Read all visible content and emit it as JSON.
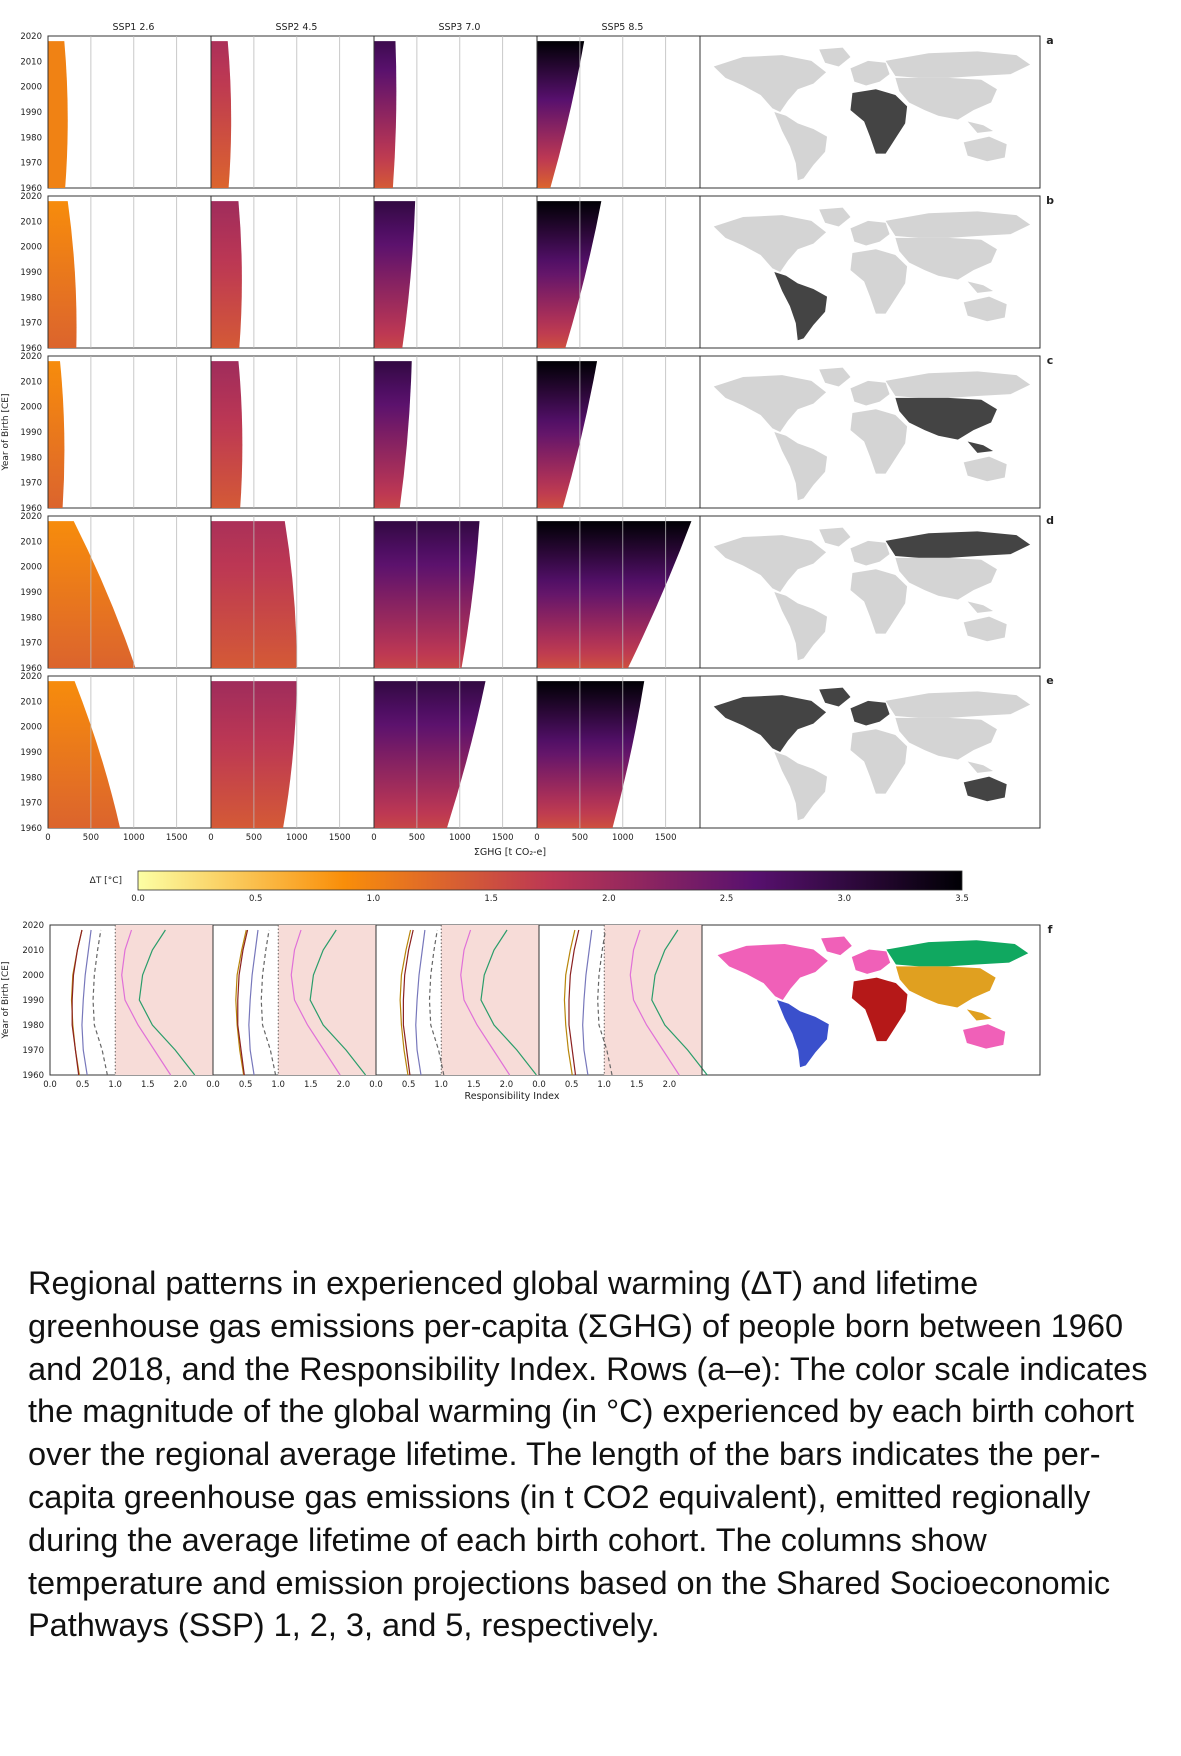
{
  "chart_data": [
    {
      "type": "bar",
      "panels": [
        "a",
        "b",
        "c",
        "d",
        "e"
      ],
      "scenarios": [
        "SSP1 2.6",
        "SSP2 4.5",
        "SSP3 7.0",
        "SSP5 8.5"
      ],
      "y_axis_label": "Year of Birth [CE]",
      "y_ticks": [
        1960,
        1970,
        1980,
        1990,
        2000,
        2010,
        2020
      ],
      "ylim": [
        1960,
        2020
      ],
      "x_axis_label": "ΣGHG [t CO₂-e]",
      "x_tick_labels": [
        "0",
        "500",
        "1000",
        "1500"
      ],
      "x_ticks": [
        0,
        500,
        1000,
        1500
      ],
      "xlim": [
        0,
        1900
      ],
      "bar_cohorts": [
        1960,
        2018
      ],
      "ghg": {
        "a": [
          [
            200,
            190
          ],
          [
            205,
            195
          ],
          [
            220,
            250
          ],
          [
            155,
            550
          ]
        ],
        "b": [
          [
            330,
            230
          ],
          [
            330,
            320
          ],
          [
            330,
            480
          ],
          [
            330,
            750
          ]
        ],
        "c": [
          [
            170,
            140
          ],
          [
            340,
            320
          ],
          [
            300,
            440
          ],
          [
            300,
            700
          ]
        ],
        "d": [
          [
            1020,
            300
          ],
          [
            1000,
            860
          ],
          [
            1020,
            1230
          ],
          [
            1060,
            1800
          ]
        ],
        "e": [
          [
            840,
            310
          ],
          [
            840,
            1000
          ],
          [
            850,
            1300
          ],
          [
            880,
            1250
          ]
        ]
      },
      "warming_C": {
        "a": [
          [
            1.0,
            1.0
          ],
          [
            1.3,
            1.9
          ],
          [
            1.4,
            2.9
          ],
          [
            1.3,
            3.5
          ]
        ],
        "b": [
          [
            1.3,
            0.9
          ],
          [
            1.4,
            2.0
          ],
          [
            1.6,
            3.0
          ],
          [
            1.5,
            3.5
          ]
        ],
        "c": [
          [
            1.3,
            0.9
          ],
          [
            1.4,
            2.0
          ],
          [
            1.6,
            3.0
          ],
          [
            1.5,
            3.5
          ]
        ],
        "d": [
          [
            1.3,
            0.9
          ],
          [
            1.4,
            1.9
          ],
          [
            1.6,
            3.0
          ],
          [
            1.5,
            3.5
          ]
        ],
        "e": [
          [
            1.3,
            0.9
          ],
          [
            1.4,
            2.0
          ],
          [
            1.6,
            3.0
          ],
          [
            1.5,
            3.5
          ]
        ]
      },
      "highlight_regions": {
        "a": "Africa",
        "b": "Latin America",
        "c": "Asia",
        "d": "Russia / North Asia",
        "e": "North America, Europe and Oceania"
      }
    },
    {
      "type": "heatmap",
      "colorbar_label": "ΔT [°C]",
      "range": [
        0,
        3.5
      ],
      "tick_labels": [
        "0.0",
        "0.5",
        "1.0",
        "1.5",
        "2.0",
        "2.5",
        "3.0",
        "3.5"
      ],
      "ticks": [
        0.0,
        0.5,
        1.0,
        1.5,
        2.0,
        2.5,
        3.0,
        3.5
      ],
      "colormap_stops": [
        "#fcffa4",
        "#f98e09",
        "#bc3754",
        "#57106e",
        "#000004"
      ]
    },
    {
      "type": "line",
      "panel": "f",
      "y_axis_label": "Year of Birth [CE]",
      "x_axis_label": "Responsibility Index",
      "y_ticks": [
        1960,
        1970,
        1980,
        1990,
        2000,
        2010,
        2020
      ],
      "ylim": [
        1960,
        2020
      ],
      "x_tick_labels": [
        "0.0",
        "0.5",
        "1.0",
        "1.5",
        "2.0"
      ],
      "x_ticks": [
        0.0,
        0.5,
        1.0,
        1.5,
        2.0
      ],
      "xlim": [
        0,
        2.5
      ],
      "reference_line": 1.0,
      "shaded_range": [
        1.0,
        2.5
      ],
      "series": [
        {
          "color": "#b8860b",
          "x": [
            0.48,
            0.42,
            0.38,
            0.36,
            0.38,
            0.45,
            0.52
          ],
          "y": [
            1960,
            1970,
            1980,
            1990,
            2000,
            2010,
            2018
          ]
        },
        {
          "color": "#8b2020",
          "x": [
            0.5,
            0.45,
            0.4,
            0.4,
            0.42,
            0.48,
            0.55
          ],
          "y": [
            1960,
            1970,
            1980,
            1990,
            2000,
            2010,
            2018
          ]
        },
        {
          "color": "#7777bb",
          "x": [
            0.66,
            0.6,
            0.58,
            0.6,
            0.63,
            0.68,
            0.72
          ],
          "y": [
            1960,
            1970,
            1980,
            1990,
            2000,
            2010,
            2018
          ]
        },
        {
          "color": "#666666",
          "dashed": true,
          "x": [
            1.0,
            0.92,
            0.8,
            0.78,
            0.8,
            0.85,
            0.9
          ],
          "y": [
            1960,
            1970,
            1980,
            1990,
            2000,
            2010,
            2018
          ]
        },
        {
          "color": "#e070d8",
          "x": [
            2.0,
            1.75,
            1.5,
            1.3,
            1.25,
            1.3,
            1.4
          ],
          "y": [
            1960,
            1970,
            1980,
            1990,
            2000,
            2010,
            2018
          ]
        },
        {
          "color": "#2a9d6a",
          "x": [
            2.4,
            2.1,
            1.75,
            1.55,
            1.6,
            1.75,
            1.95
          ],
          "y": [
            1960,
            1970,
            1980,
            1990,
            2000,
            2010,
            2018
          ]
        }
      ],
      "map_regions": [
        {
          "name": "North America, Europe and Oceania",
          "color": "#f060b8"
        },
        {
          "name": "Latin America",
          "color": "#3a50cc"
        },
        {
          "name": "Africa",
          "color": "#b51818"
        },
        {
          "name": "Asia",
          "color": "#e0a020"
        },
        {
          "name": "Russia / North Asia",
          "color": "#10a860"
        }
      ]
    }
  ],
  "caption": "Regional patterns in experienced global warming (ΔT) and lifetime greenhouse gas emissions per-capita (ΣGHG) of people born between 1960 and 2018, and the Responsibility Index. Rows (a–e): The color scale indicates the magnitude of the global warming (in °C) experienced by each birth cohort over the regional average lifetime. The length of the bars indicates the per-capita greenhouse gas emissions (in t CO2 equivalent), emitted regionally during the average lifetime of each birth cohort. The columns show temperature and emission projections based on the Shared Socioeconomic Pathways (SSP) 1, 2, 3, and 5, respectively.",
  "colors": {
    "map_land": "#d4d4d4",
    "map_highlight": "#444444",
    "panel_f_shade": "#f7dcd8"
  }
}
